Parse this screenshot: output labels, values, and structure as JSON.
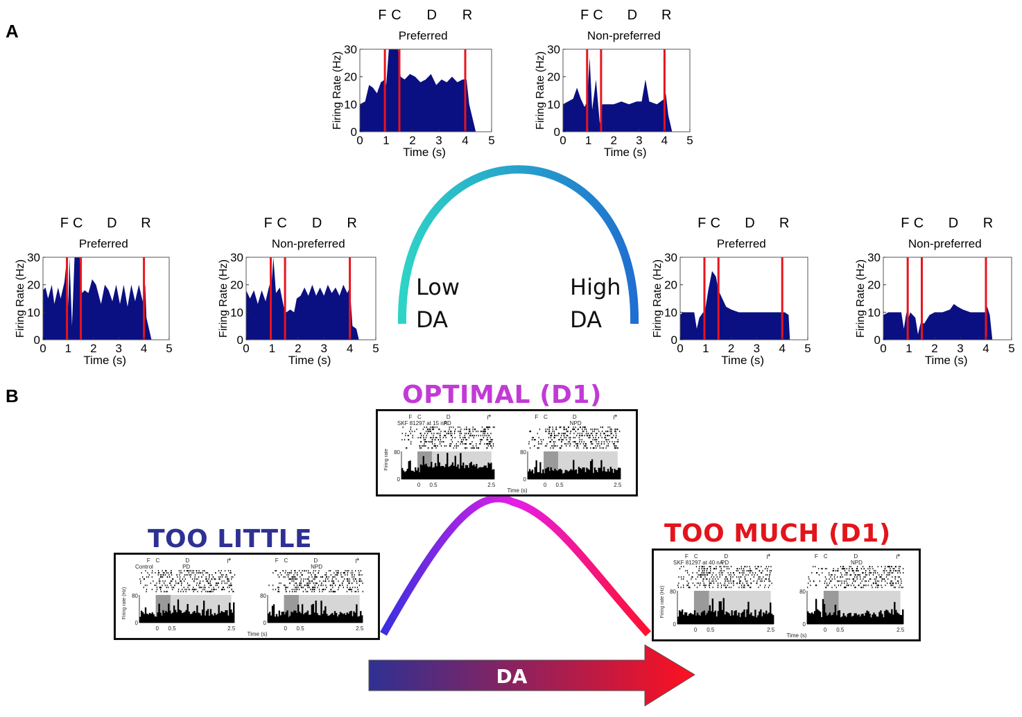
{
  "panels": {
    "a": {
      "letter": "A"
    },
    "b": {
      "letter": "B"
    }
  },
  "psth_plot": {
    "event_labels": [
      "F",
      "C",
      "D",
      "R"
    ],
    "y_axis_label": "Firing Rate (Hz)",
    "x_axis_label": "Time (s)",
    "y_ticks": [
      "0",
      "10",
      "20",
      "30"
    ],
    "x_ticks": [
      "0",
      "1",
      "2",
      "3",
      "4",
      "5"
    ],
    "fill_color": "#0a0f82",
    "event_line_color": "#e8141c",
    "event_times": [
      0.95,
      1.5,
      4.0
    ]
  },
  "panel_a_plots": [
    {
      "id": "optimal-preferred",
      "title": "Preferred"
    },
    {
      "id": "optimal-nonpreferred",
      "title": "Non-preferred"
    },
    {
      "id": "low-preferred",
      "title": "Preferred"
    },
    {
      "id": "low-nonpreferred",
      "title": "Non-preferred"
    },
    {
      "id": "high-preferred",
      "title": "Preferred"
    },
    {
      "id": "high-nonpreferred",
      "title": "Non-preferred"
    }
  ],
  "arc_a": {
    "low_label_line1": "Low",
    "low_label_line2": "DA",
    "high_label_line1": "High",
    "high_label_line2": "DA",
    "color_start": "#2ed3c6",
    "color_end": "#1f6fd0"
  },
  "panel_b": {
    "optimal_title": "OPTIMAL (D1)",
    "optimal_color": "#c23ad6",
    "too_little_title": "TOO LITTLE",
    "too_little_color": "#2e3192",
    "too_much_title": "TOO MUCH (D1)",
    "too_much_color": "#e3141b",
    "arrow_label": "DA",
    "arrow_color_start": "#2e3192",
    "arrow_color_end": "#ff1020",
    "arc_color_start": "#3a2fe0",
    "arc_color_mid": "#e51ee6",
    "arc_color_end": "#ff1030",
    "mini": {
      "optimal": {
        "left_drug": "SKF 81297 at 15 nA",
        "left_cond": "PD",
        "right_cond": "NPD",
        "events": [
          "F",
          "C",
          "D"
        ],
        "ylabel": "Firing rate",
        "ytick": "80",
        "yzero": "0",
        "xticks": [
          "0",
          "0.5",
          "2.5"
        ],
        "xlabel": "Time (s)"
      },
      "too_little": {
        "left_drug": "Control",
        "left_cond": "PD",
        "right_cond": "NPD",
        "events": [
          "F",
          "C",
          "D"
        ],
        "ylabel": "Firing rate (Hz)",
        "ytick": "80",
        "yzero": "0",
        "xticks": [
          "0",
          "0.5",
          "2.5"
        ],
        "xlabel": "Time (s)"
      },
      "too_much": {
        "left_drug": "SKF 81297 at 40 nA",
        "left_cond": "PD",
        "right_cond": "NPD",
        "events": [
          "F",
          "C",
          "D"
        ],
        "ylabel": "Firing rate (Hz)",
        "ytick": "80",
        "yzero": "0",
        "xticks": [
          "0",
          "0.5",
          "2.5"
        ],
        "xlabel": "Time (s)"
      }
    }
  }
}
